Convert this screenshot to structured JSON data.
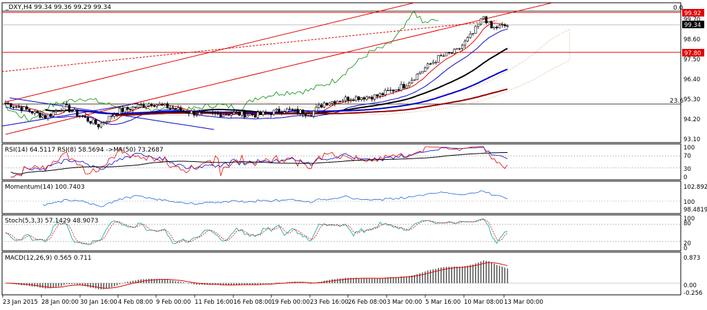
{
  "chart_data": {
    "type": "candlestick",
    "symbol_header": "_DXY,H4  99.34 99.36 99.29 99.34",
    "y_ticks": [
      "99.70",
      "98.60",
      "97.50",
      "96.40",
      "95.30",
      "94.20",
      "93.10"
    ],
    "x_ticks": [
      "23 Jan 2015",
      "28 Jan 00:00",
      "30 Jan 16:00",
      "4 Feb 08:00",
      "9 Feb 00:00",
      "11 Feb 16:00",
      "16 Feb 08:00",
      "19 Feb 00:00",
      "23 Feb 16:00",
      "26 Feb 08:00",
      "3 Mar 00:00",
      "5 Mar 16:00",
      "10 Mar 08:00",
      "13 Mar 00:00"
    ],
    "ylim": [
      92.75,
      100.7
    ],
    "price_badges": [
      {
        "value": "99.92",
        "color": "#e00000"
      },
      {
        "value": "99.34",
        "color": "#000000"
      },
      {
        "value": "97.80",
        "color": "#e00000"
      }
    ],
    "fib_labels": [
      "0.0",
      "23.6"
    ],
    "key_points": [
      {
        "x": 0,
        "y": 95.0
      },
      {
        "x": 8,
        "y": 94.6
      },
      {
        "x": 15,
        "y": 94.2
      },
      {
        "x": 22,
        "y": 94.8
      },
      {
        "x": 30,
        "y": 94.1
      },
      {
        "x": 35,
        "y": 93.7
      },
      {
        "x": 42,
        "y": 94.5
      },
      {
        "x": 55,
        "y": 95.0
      },
      {
        "x": 65,
        "y": 94.6
      },
      {
        "x": 75,
        "y": 94.3
      },
      {
        "x": 85,
        "y": 94.4
      },
      {
        "x": 95,
        "y": 94.3
      },
      {
        "x": 105,
        "y": 94.6
      },
      {
        "x": 115,
        "y": 94.4
      },
      {
        "x": 120,
        "y": 95.0
      },
      {
        "x": 130,
        "y": 95.3
      },
      {
        "x": 140,
        "y": 95.4
      },
      {
        "x": 150,
        "y": 96.0
      },
      {
        "x": 158,
        "y": 97.0
      },
      {
        "x": 163,
        "y": 97.6
      },
      {
        "x": 170,
        "y": 98.0
      },
      {
        "x": 176,
        "y": 99.0
      },
      {
        "x": 180,
        "y": 100.0
      },
      {
        "x": 183,
        "y": 99.3
      },
      {
        "x": 186,
        "y": 99.4
      }
    ],
    "indicators": [
      {
        "panel": "RSI",
        "label": "RSI(14) 64.5117  RSI(8) 58.5694  ->MA(50) 73.2687",
        "levels": [
          "100",
          "70",
          "30",
          "0"
        ]
      },
      {
        "panel": "Momentum",
        "label": "Momentum(14) 100.7403",
        "levels": [
          "102.8921",
          "100",
          "98.4819"
        ]
      },
      {
        "panel": "Stoch",
        "label": "Stoch(5,3,3) 57.1429 48.9073",
        "levels": [
          "100",
          "80",
          "20",
          "0"
        ]
      },
      {
        "panel": "MACD",
        "label": "MACD(12,26,9) 0.565 0.711",
        "levels": [
          "0.873",
          "0.00",
          "-0.256"
        ]
      }
    ]
  }
}
